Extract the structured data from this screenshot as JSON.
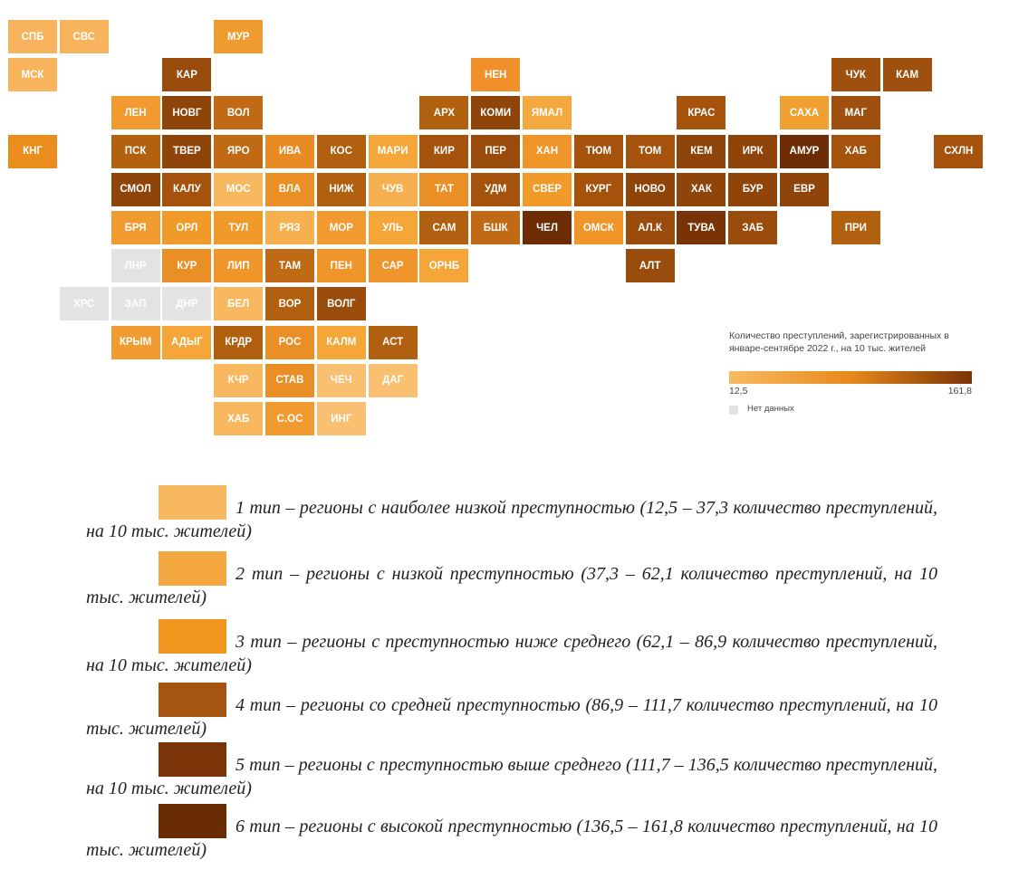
{
  "map": {
    "tiles": [
      {
        "label": "СПБ",
        "color": "#f7b45c"
      },
      {
        "label": "СВС",
        "color": "#f7b45c"
      },
      {
        "label": "МУР",
        "color": "#ee9b30"
      },
      {
        "label": "МСК",
        "color": "#f7b45c"
      },
      {
        "label": "КАР",
        "color": "#9a4c0c"
      },
      {
        "label": "НЕН",
        "color": "#f0902a"
      },
      {
        "label": "ЧУК",
        "color": "#a0500e"
      },
      {
        "label": "КАМ",
        "color": "#a0500e"
      },
      {
        "label": "ЛЕН",
        "color": "#f09a30"
      },
      {
        "label": "НОВГ",
        "color": "#8f440a"
      },
      {
        "label": "ВОЛ",
        "color": "#c06a15"
      },
      {
        "label": "АРХ",
        "color": "#b0600f"
      },
      {
        "label": "КОМИ",
        "color": "#8f440a"
      },
      {
        "label": "ЯМАЛ",
        "color": "#f3a93f"
      },
      {
        "label": "КРАС",
        "color": "#a5520d"
      },
      {
        "label": "САХА",
        "color": "#f0a030"
      },
      {
        "label": "МАГ",
        "color": "#a0500e"
      },
      {
        "label": "КНГ",
        "color": "#eb8d1c"
      },
      {
        "label": "ПСК",
        "color": "#b2620f"
      },
      {
        "label": "ТВЕР",
        "color": "#8f440a"
      },
      {
        "label": "ЯРО",
        "color": "#c06a15"
      },
      {
        "label": "ИВА",
        "color": "#e78b22"
      },
      {
        "label": "КОС",
        "color": "#b0600f"
      },
      {
        "label": "МАРИ",
        "color": "#f4a639"
      },
      {
        "label": "КИР",
        "color": "#a5520d"
      },
      {
        "label": "ПЕР",
        "color": "#9a4c0c"
      },
      {
        "label": "ХАН",
        "color": "#f0952a"
      },
      {
        "label": "ТЮМ",
        "color": "#a5520d"
      },
      {
        "label": "ТОМ",
        "color": "#a5520d"
      },
      {
        "label": "КЕМ",
        "color": "#8f440a"
      },
      {
        "label": "ИРК",
        "color": "#8f440a"
      },
      {
        "label": "АМУР",
        "color": "#6e2c05"
      },
      {
        "label": "ХАБ",
        "color": "#a5520d"
      },
      {
        "label": "СХЛН",
        "color": "#a5520d"
      },
      {
        "label": "СМОЛ",
        "color": "#8f440a"
      },
      {
        "label": "КАЛУ",
        "color": "#a5520d"
      },
      {
        "label": "МОС",
        "color": "#f7b860"
      },
      {
        "label": "ВЛА",
        "color": "#e98f25"
      },
      {
        "label": "НИЖ",
        "color": "#b0600f"
      },
      {
        "label": "ЧУВ",
        "color": "#f6b050"
      },
      {
        "label": "ТАТ",
        "color": "#e98f25"
      },
      {
        "label": "УДМ",
        "color": "#a5520d"
      },
      {
        "label": "СВЕР",
        "color": "#f09a2a"
      },
      {
        "label": "КУРГ",
        "color": "#a5520d"
      },
      {
        "label": "НОВО",
        "color": "#8f440a"
      },
      {
        "label": "ХАК",
        "color": "#8f440a"
      },
      {
        "label": "БУР",
        "color": "#8f440a"
      },
      {
        "label": "ЕВР",
        "color": "#8f440a"
      },
      {
        "label": "БРЯ",
        "color": "#f09a30"
      },
      {
        "label": "ОРЛ",
        "color": "#f09a2a"
      },
      {
        "label": "ТУЛ",
        "color": "#f09a2a"
      },
      {
        "label": "РЯЗ",
        "color": "#f6b050"
      },
      {
        "label": "МОР",
        "color": "#f09a30"
      },
      {
        "label": "УЛЬ",
        "color": "#f4a639"
      },
      {
        "label": "САМ",
        "color": "#b0600f"
      },
      {
        "label": "БШК",
        "color": "#c06a15"
      },
      {
        "label": "ЧЕЛ",
        "color": "#6e2c05"
      },
      {
        "label": "ОМСК",
        "color": "#f0952a"
      },
      {
        "label": "АЛ.К",
        "color": "#9a4c0c"
      },
      {
        "label": "ТУВА",
        "color": "#7a3306"
      },
      {
        "label": "ЗАБ",
        "color": "#9a4c0c"
      },
      {
        "label": "ПРИ",
        "color": "#b0600f"
      },
      {
        "label": "ЛНР",
        "color": "#e3e3e3"
      },
      {
        "label": "КУР",
        "color": "#e98f25"
      },
      {
        "label": "ЛИП",
        "color": "#f0952a"
      },
      {
        "label": "ТАМ",
        "color": "#c06a15"
      },
      {
        "label": "ПЕН",
        "color": "#f0952a"
      },
      {
        "label": "САР",
        "color": "#f0952a"
      },
      {
        "label": "ОРНБ",
        "color": "#f4a639"
      },
      {
        "label": "АЛТ",
        "color": "#9a4c0c"
      },
      {
        "label": "ХРС",
        "color": "#e3e3e3"
      },
      {
        "label": "ЗАП",
        "color": "#e3e3e3"
      },
      {
        "label": "ДНР",
        "color": "#e3e3e3"
      },
      {
        "label": "БЕЛ",
        "color": "#f7b860"
      },
      {
        "label": "ВОР",
        "color": "#b0600f"
      },
      {
        "label": "ВОЛГ",
        "color": "#9a4c0c"
      },
      {
        "label": "КРЫМ",
        "color": "#f09a30"
      },
      {
        "label": "АДЫГ",
        "color": "#f4a639"
      },
      {
        "label": "КРДР",
        "color": "#b0600f"
      },
      {
        "label": "РОС",
        "color": "#e98f25"
      },
      {
        "label": "КАЛМ",
        "color": "#f4a639"
      },
      {
        "label": "АСТ",
        "color": "#b0600f"
      },
      {
        "label": "КЧР",
        "color": "#f7b860"
      },
      {
        "label": "СТАВ",
        "color": "#e98f25"
      },
      {
        "label": "ЧЕЧ",
        "color": "#f8c070"
      },
      {
        "label": "ДАГ",
        "color": "#f8c070"
      },
      {
        "label": "ХАБ",
        "color": "#f7b860"
      },
      {
        "label": "С.ОС",
        "color": "#f09a30"
      },
      {
        "label": "ИНГ",
        "color": "#f8c070"
      }
    ],
    "legend": {
      "title": "Количество преступлений, зарегистрированных в январе-сентябре 2022 г., на 10 тыс. жителей",
      "gradient": [
        "#f8bb62",
        "#e8891a",
        "#7a3306"
      ],
      "min_label": "12,5",
      "max_label": "161,8",
      "no_data_label": "Нет данных",
      "no_data_color": "#e3e3e3"
    }
  },
  "types": [
    {
      "text": "1 тип – регионы с наиболее низкой преступностью (12,5 – 37,3 количество преступлений, на 10 тыс. жителей)",
      "color": "#f8b860"
    },
    {
      "text": "2 тип – регионы с низкой преступностью (37,3 – 62,1 количество преступлений, на 10 тыс. жителей)",
      "color": "#f4a640"
    },
    {
      "text": "3 тип – регионы с преступностью ниже среднего (62,1 – 86,9 количество преступлений, на 10 тыс. жителей)",
      "color": "#f0961e"
    },
    {
      "text": "4 тип – регионы со средней преступностью (86,9 – 111,7 количество преступлений, на 10 тыс. жителей)",
      "color": "#a65510"
    },
    {
      "text": "5 тип – регионы с преступностью выше среднего (111,7 – 136,5 количество преступлений, на 10 тыс. жителей)",
      "color": "#7a3408"
    },
    {
      "text": "6 тип – регионы с высокой преступностью (136,5 – 161,8 количество преступлений, на 10 тыс. жителей)",
      "color": "#6a2c05"
    }
  ]
}
